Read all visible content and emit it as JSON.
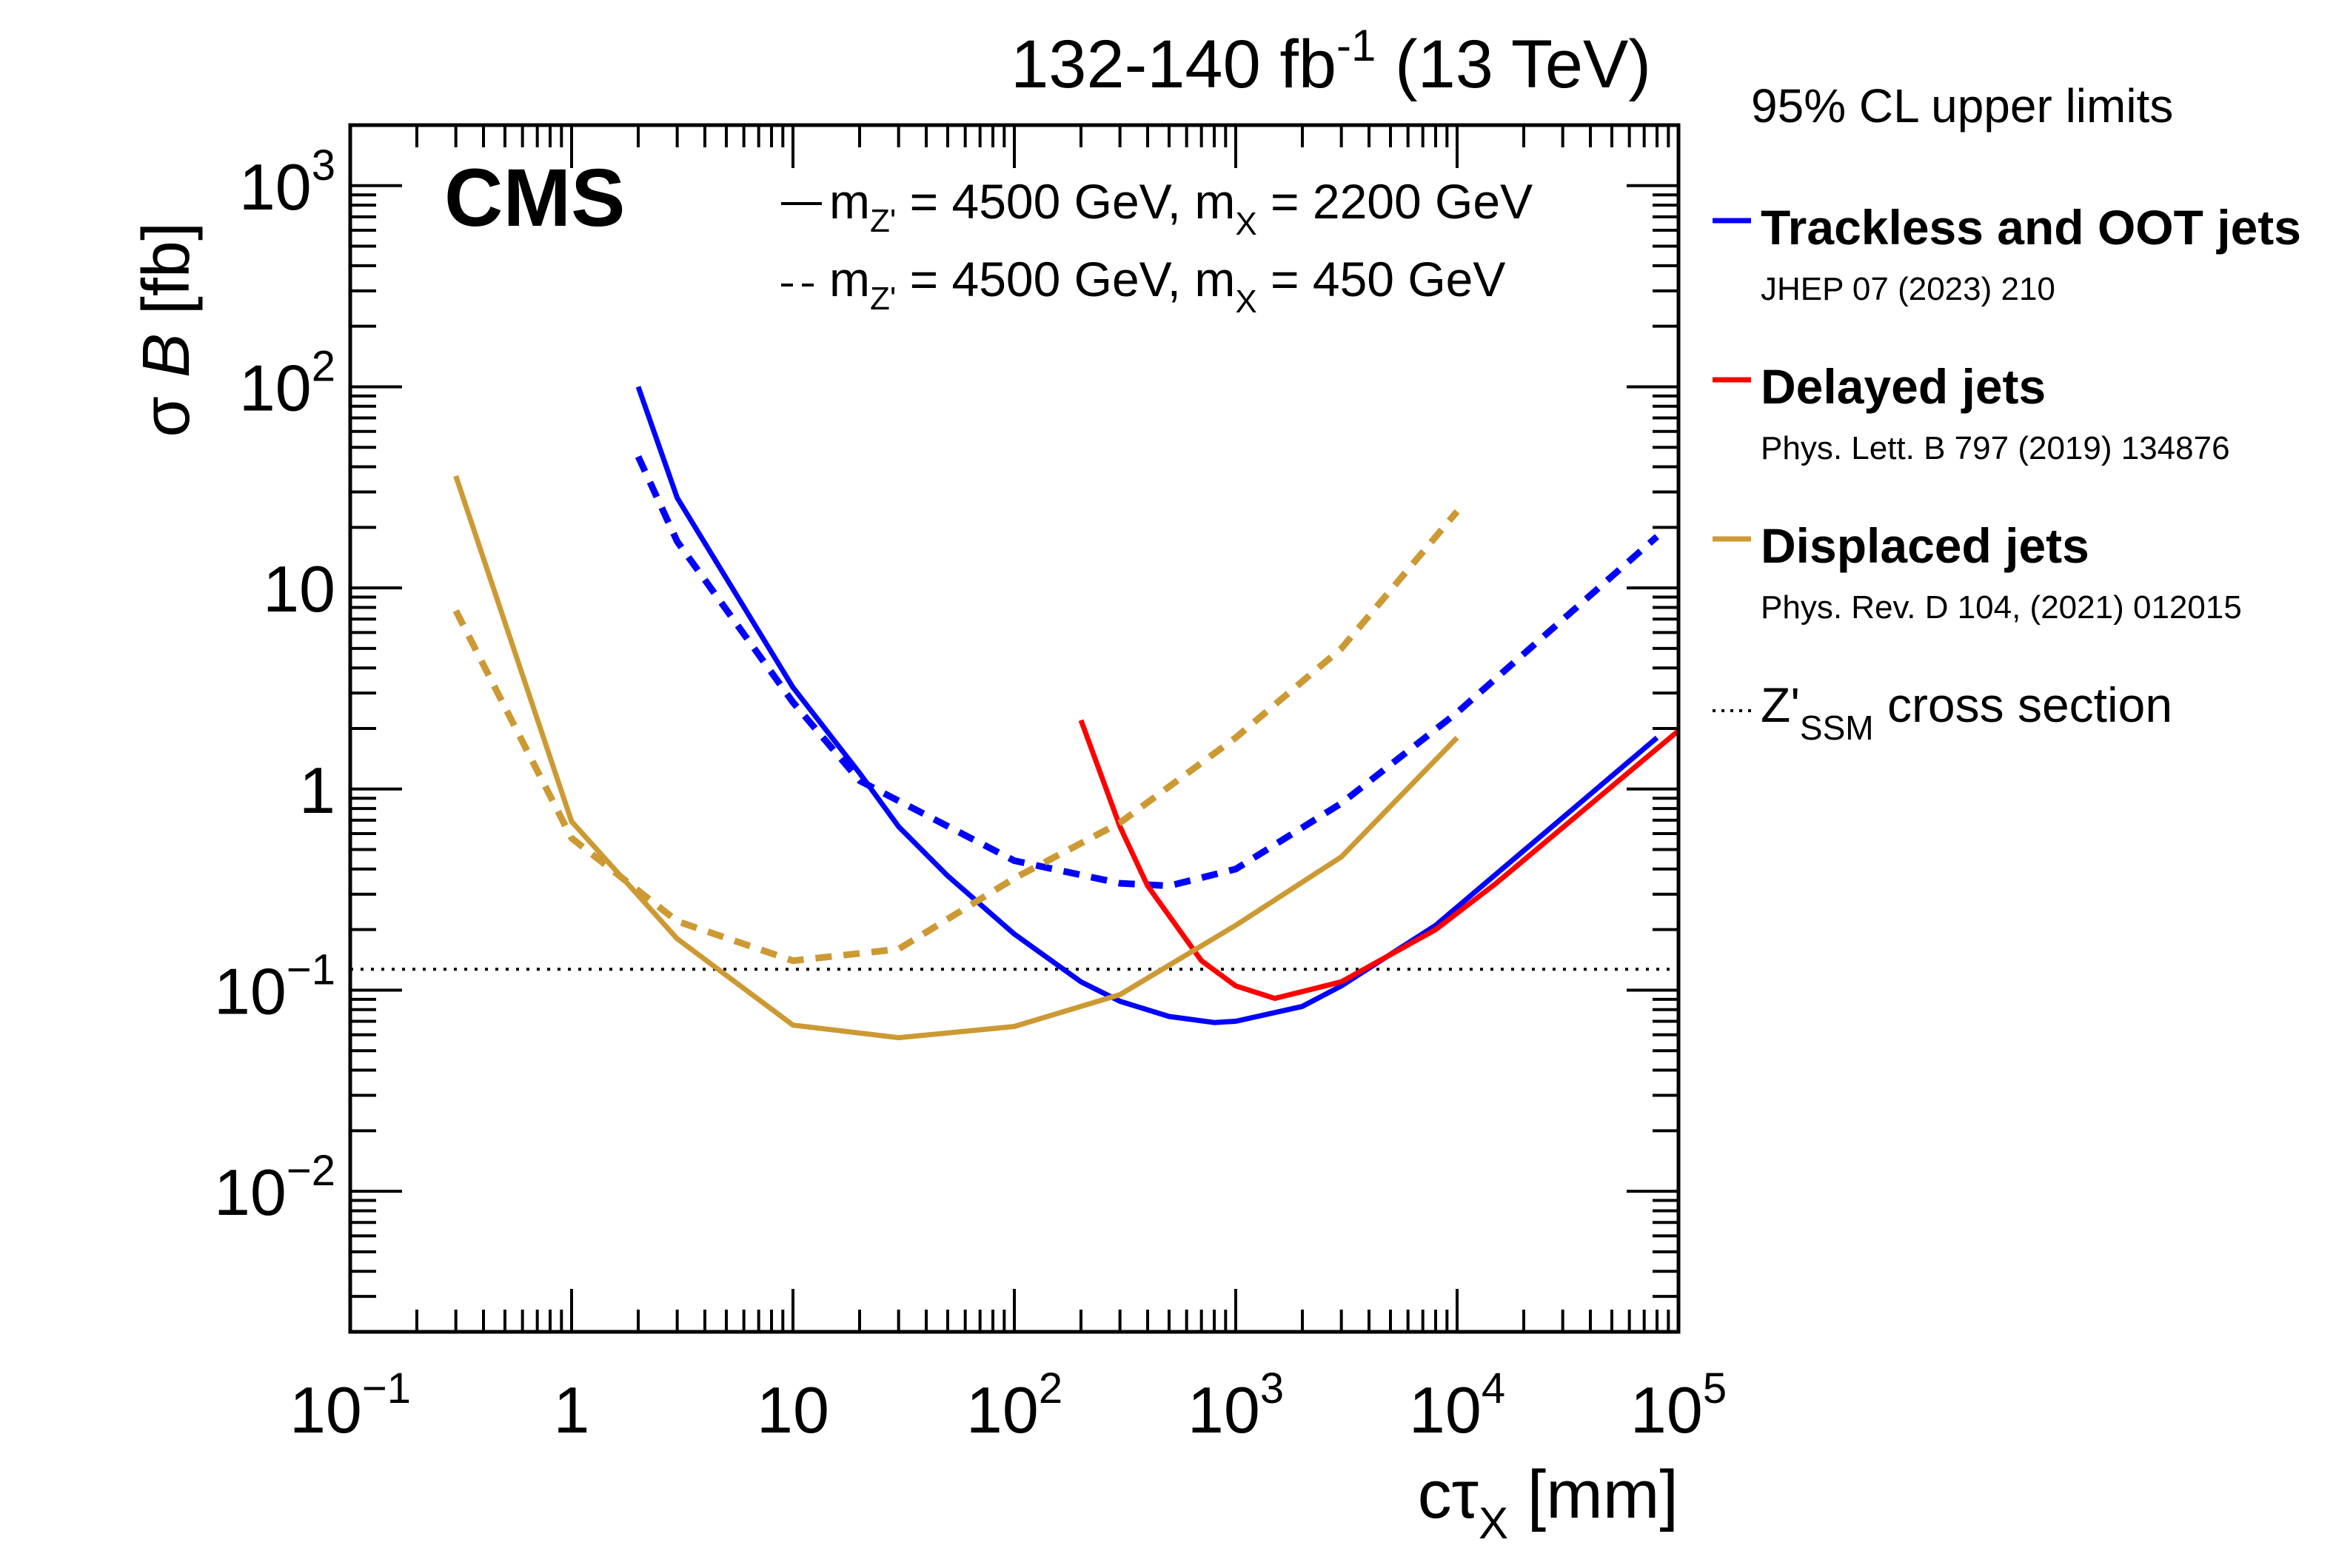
{
  "chart_data": {
    "type": "line",
    "title": "132-140 fb-1 (13 TeV)",
    "lumi_text": {
      "main": "132-140 fb",
      "sup": "-1",
      "tail": " (13 TeV)"
    },
    "experiment_label": "CMS",
    "xlabel": {
      "main": "cτ",
      "sub": "X",
      "tail": " [mm]"
    },
    "ylabel": {
      "greek": "σ ",
      "italic": "B",
      "tail": " [fb]"
    },
    "xscale": "log",
    "yscale": "log",
    "xlim": [
      0.1,
      100000
    ],
    "ylim": [
      0.002,
      2000
    ],
    "x_tick_labels": [
      {
        "value": 0.1,
        "base": "10",
        "exp": "−1"
      },
      {
        "value": 1,
        "base": "1",
        "exp": ""
      },
      {
        "value": 10,
        "base": "10",
        "exp": ""
      },
      {
        "value": 100,
        "base": "10",
        "exp": "2"
      },
      {
        "value": 1000,
        "base": "10",
        "exp": "3"
      },
      {
        "value": 10000,
        "base": "10",
        "exp": "4"
      },
      {
        "value": 100000,
        "base": "10",
        "exp": "5"
      }
    ],
    "y_tick_labels": [
      {
        "value": 0.01,
        "base": "10",
        "exp": "−2"
      },
      {
        "value": 0.1,
        "base": "10",
        "exp": "−1"
      },
      {
        "value": 1,
        "base": "1",
        "exp": ""
      },
      {
        "value": 10,
        "base": "10",
        "exp": ""
      },
      {
        "value": 100,
        "base": "10",
        "exp": "2"
      },
      {
        "value": 1000,
        "base": "10",
        "exp": "3"
      }
    ],
    "grid": false,
    "mass_legend": [
      {
        "style": "solid",
        "text": "m",
        "sub1": "Z'",
        "mid": " = 4500 GeV, m",
        "sub2": "X",
        "tail": " = 2200 GeV"
      },
      {
        "style": "dashed",
        "text": "m",
        "sub1": "Z'",
        "mid": " = 4500 GeV, m",
        "sub2": "X",
        "tail": " = 450 GeV"
      }
    ],
    "legend": {
      "placement": "right-outside",
      "header": "95% CL upper limits",
      "entries": [
        {
          "label": "Trackless and OOT jets",
          "reference": "JHEP 07 (2023) 210",
          "color": "#0000ff"
        },
        {
          "label": "Delayed jets",
          "reference": "Phys. Lett. B 797 (2019) 134876",
          "color": "#ff0000"
        },
        {
          "label": "Displaced jets",
          "reference": "Phys. Rev. D 104, (2021) 012015",
          "color": "#cc9933"
        }
      ],
      "reference_line": {
        "prefix": "Z'",
        "sub": "SSM",
        "tail": " cross section"
      }
    },
    "series": [
      {
        "name": "Trackless and OOT jets (mX = 2200 GeV)",
        "color": "#0000ff",
        "style": "solid",
        "x": [
          2,
          3,
          10,
          20,
          30,
          50,
          100,
          200,
          300,
          500,
          800,
          1000,
          2000,
          3000,
          8000,
          80000
        ],
        "y": [
          100,
          28,
          3.2,
          1.2,
          0.65,
          0.37,
          0.19,
          0.11,
          0.088,
          0.074,
          0.069,
          0.07,
          0.083,
          0.105,
          0.21,
          1.8
        ]
      },
      {
        "name": "Trackless and OOT jets (mX = 450 GeV)",
        "color": "#0000ff",
        "style": "dashed",
        "x": [
          2,
          3,
          10,
          20,
          100,
          300,
          500,
          1000,
          3000,
          10000,
          80000
        ],
        "y": [
          45,
          17,
          2.7,
          1.1,
          0.44,
          0.34,
          0.33,
          0.4,
          0.85,
          2.4,
          18
        ]
      },
      {
        "name": "Delayed jets (mX = 2200 GeV)",
        "color": "#ff0000",
        "style": "solid",
        "x": [
          200,
          300,
          400,
          700,
          1000,
          1500,
          3000,
          8000,
          15000,
          100000
        ],
        "y": [
          2.2,
          0.65,
          0.33,
          0.14,
          0.105,
          0.091,
          0.11,
          0.2,
          0.34,
          1.95
        ]
      },
      {
        "name": "Displaced jets (mX = 2200 GeV)",
        "color": "#cc9933",
        "style": "solid",
        "x": [
          0.3,
          1,
          3,
          10,
          30,
          100,
          300,
          1000,
          3000,
          10000
        ],
        "y": [
          36,
          0.69,
          0.18,
          0.067,
          0.058,
          0.066,
          0.095,
          0.21,
          0.46,
          1.8
        ]
      },
      {
        "name": "Displaced jets (mX = 450 GeV)",
        "color": "#cc9933",
        "style": "dashed",
        "x": [
          0.3,
          1,
          3,
          10,
          30,
          100,
          300,
          1000,
          3000,
          10000
        ],
        "y": [
          7.7,
          0.57,
          0.22,
          0.14,
          0.16,
          0.36,
          0.68,
          1.8,
          5,
          24
        ]
      }
    ],
    "reference_lines": [
      {
        "name": "Z'SSM cross section",
        "y": 0.127,
        "style": "dotted",
        "color": "#000000"
      }
    ]
  }
}
